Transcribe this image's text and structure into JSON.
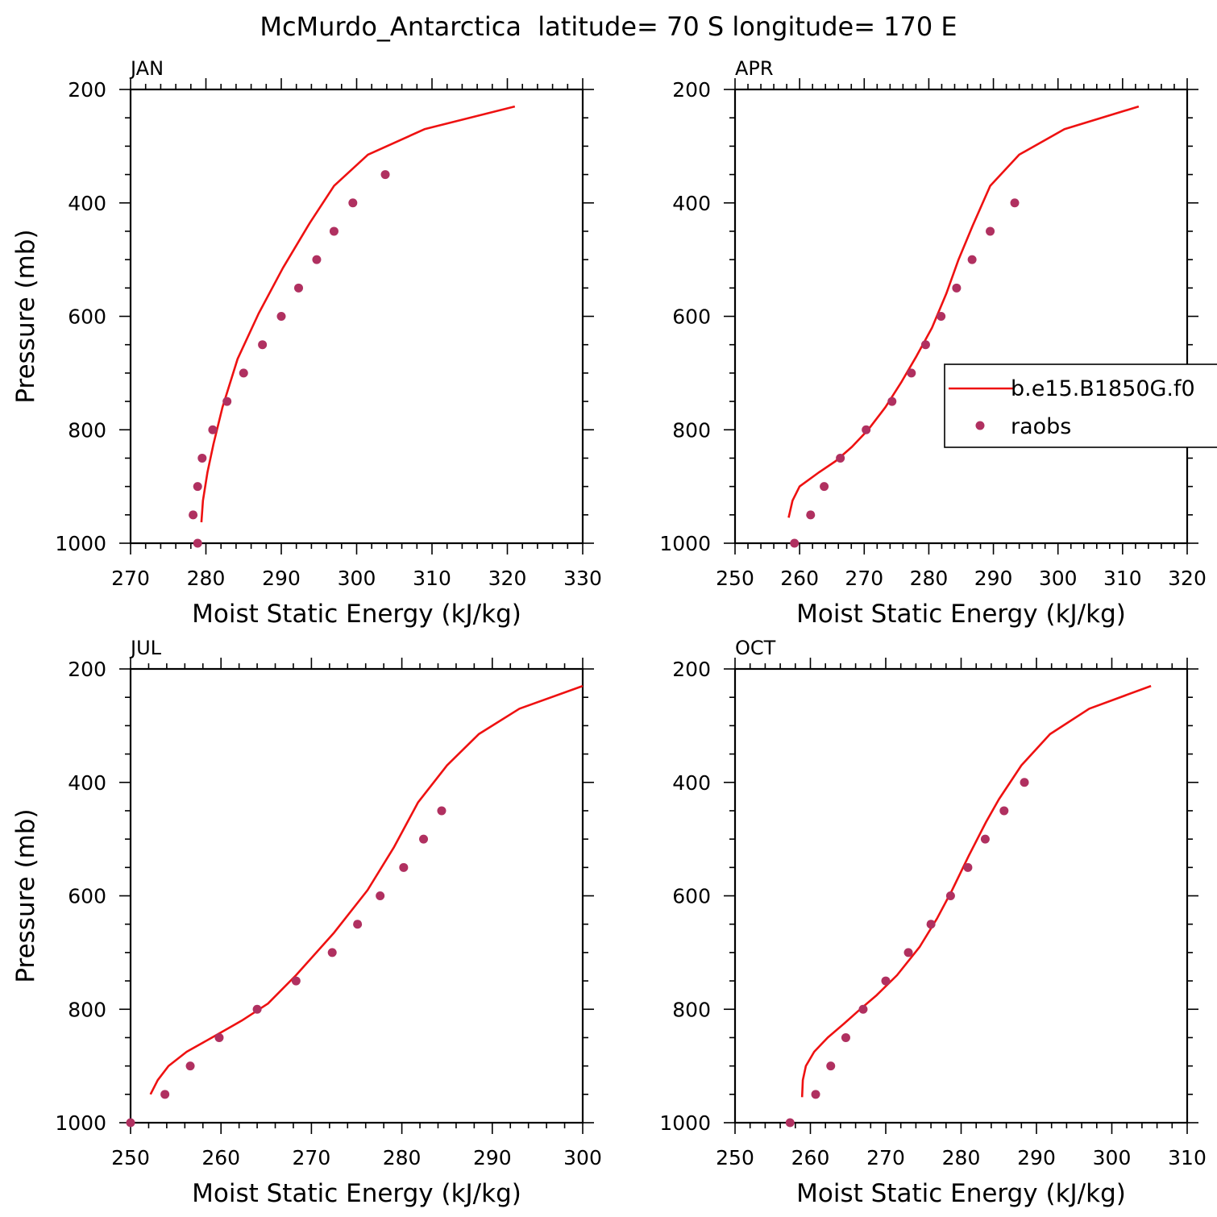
{
  "figure": {
    "title": "McMurdo_Antarctica  latitude= 70 S longitude= 170 E"
  },
  "legend": {
    "placement": "right-middle of APR panel",
    "entries": [
      {
        "label": "b.e15.B1850G.f0",
        "type": "line",
        "color": "#ee1111"
      },
      {
        "label": "raobs",
        "type": "marker",
        "color": "#b03060"
      }
    ]
  },
  "colors": {
    "model_line": "#ee1111",
    "raobs_marker": "#b03060"
  },
  "chart_data": [
    {
      "type": "line",
      "panel": "JAN",
      "xlabel": "Moist Static Energy (kJ/kg)",
      "ylabel": "Pressure (mb)",
      "xlim": [
        270,
        330
      ],
      "ylim": [
        1000,
        200
      ],
      "xticks": [
        270,
        280,
        290,
        300,
        310,
        320,
        330
      ],
      "yticks": [
        200,
        400,
        600,
        800,
        1000
      ],
      "series": [
        {
          "name": "b.e15.B1850G.f0",
          "kind": "line",
          "x": [
            279.4,
            279.6,
            280.2,
            281.0,
            282.2,
            284.2,
            287.0,
            290.2,
            293.8,
            297.0,
            301.5,
            309.0,
            321.0
          ],
          "y": [
            963,
            925,
            875,
            825,
            760,
            675,
            595,
            515,
            435,
            370,
            315,
            270,
            230
          ]
        },
        {
          "name": "raobs",
          "kind": "scatter",
          "x": [
            278.9,
            278.3,
            278.9,
            279.5,
            280.9,
            282.8,
            285.0,
            287.5,
            290.0,
            292.3,
            294.7,
            297.0,
            299.5,
            303.8
          ],
          "y": [
            1000,
            950,
            900,
            850,
            800,
            750,
            700,
            650,
            600,
            550,
            500,
            450,
            400,
            350
          ]
        }
      ]
    },
    {
      "type": "line",
      "panel": "APR",
      "xlabel": "Moist Static Energy (kJ/kg)",
      "ylabel": "",
      "xlim": [
        250,
        320
      ],
      "ylim": [
        1000,
        200
      ],
      "xticks": [
        250,
        260,
        270,
        280,
        290,
        300,
        310,
        320
      ],
      "yticks": [
        200,
        400,
        600,
        800,
        1000
      ],
      "series": [
        {
          "name": "b.e15.B1850G.f0",
          "kind": "line",
          "x": [
            258.3,
            258.9,
            260.0,
            263.0,
            265.6,
            268.1,
            270.6,
            273.3,
            275.8,
            278.1,
            280.5,
            282.7,
            284.6,
            286.8,
            289.5,
            294.0,
            301.0,
            312.5
          ],
          "y": [
            955,
            925,
            900,
            875,
            855,
            830,
            800,
            760,
            715,
            670,
            620,
            560,
            500,
            440,
            370,
            315,
            270,
            230
          ]
        },
        {
          "name": "raobs",
          "kind": "scatter",
          "x": [
            259.2,
            261.7,
            263.8,
            266.3,
            270.3,
            274.3,
            277.3,
            279.5,
            281.9,
            284.3,
            286.7,
            289.5,
            293.3
          ],
          "y": [
            1000,
            950,
            900,
            850,
            800,
            750,
            700,
            650,
            600,
            550,
            500,
            450,
            400
          ]
        }
      ]
    },
    {
      "type": "line",
      "panel": "JUL",
      "xlabel": "Moist Static Energy (kJ/kg)",
      "ylabel": "Pressure (mb)",
      "xlim": [
        250,
        300
      ],
      "ylim": [
        1000,
        200
      ],
      "xticks": [
        250,
        260,
        270,
        280,
        290,
        300
      ],
      "yticks": [
        200,
        400,
        600,
        800,
        1000
      ],
      "series": [
        {
          "name": "b.e15.B1850G.f0",
          "kind": "line",
          "x": [
            252.2,
            253.0,
            254.2,
            256.2,
            259.0,
            262.3,
            265.2,
            268.3,
            272.5,
            276.2,
            279.1,
            281.8,
            285.0,
            288.5,
            293.0,
            300.0
          ],
          "y": [
            950,
            925,
            900,
            875,
            850,
            820,
            790,
            740,
            665,
            590,
            515,
            435,
            370,
            315,
            270,
            230
          ]
        },
        {
          "name": "raobs",
          "kind": "scatter",
          "x": [
            250.0,
            253.8,
            256.6,
            259.8,
            264.0,
            268.3,
            272.3,
            275.1,
            277.6,
            280.2,
            282.4,
            284.4
          ],
          "y": [
            1000,
            950,
            900,
            850,
            800,
            750,
            700,
            650,
            600,
            550,
            500,
            450
          ]
        }
      ]
    },
    {
      "type": "line",
      "panel": "OCT",
      "xlabel": "Moist Static Energy (kJ/kg)",
      "ylabel": "",
      "xlim": [
        250,
        310
      ],
      "ylim": [
        1000,
        200
      ],
      "xticks": [
        250,
        260,
        270,
        280,
        290,
        300,
        310
      ],
      "yticks": [
        200,
        400,
        600,
        800,
        1000
      ],
      "series": [
        {
          "name": "b.e15.B1850G.f0",
          "kind": "line",
          "x": [
            258.9,
            259.0,
            259.4,
            260.5,
            262.3,
            264.5,
            266.6,
            268.8,
            271.5,
            274.5,
            276.8,
            278.8,
            281.0,
            283.3,
            285.0,
            288.0,
            291.8,
            297.0,
            305.2
          ],
          "y": [
            955,
            925,
            900,
            875,
            850,
            825,
            800,
            775,
            740,
            690,
            640,
            590,
            530,
            470,
            430,
            370,
            315,
            270,
            230
          ]
        },
        {
          "name": "raobs",
          "kind": "scatter",
          "x": [
            257.3,
            260.7,
            262.7,
            264.7,
            267.0,
            270.0,
            273.0,
            276.0,
            278.6,
            280.9,
            283.2,
            285.7,
            288.4
          ],
          "y": [
            1000,
            950,
            900,
            850,
            800,
            750,
            700,
            650,
            600,
            550,
            500,
            450,
            400
          ]
        }
      ]
    }
  ]
}
